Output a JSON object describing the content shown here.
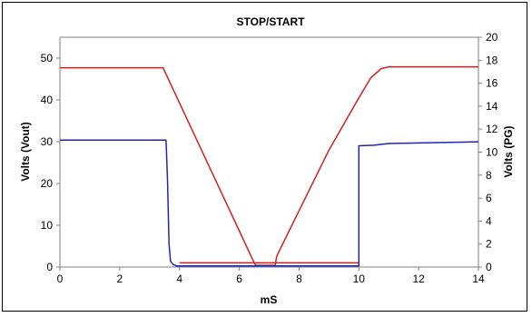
{
  "chart_data": {
    "type": "line",
    "title": "STOP/START",
    "xlabel": "mS",
    "ylabel_left": "Volts (Vout)",
    "ylabel_right": "Volts (PG)",
    "xlim": [
      0,
      14
    ],
    "ylim_left": [
      0,
      55
    ],
    "ylim_right": [
      0,
      20
    ],
    "x_ticks": [
      "0",
      "2",
      "4",
      "6",
      "8",
      "10",
      "12",
      "14"
    ],
    "y_left_ticks": [
      "0",
      "10",
      "20",
      "30",
      "40",
      "50"
    ],
    "y_right_ticks": [
      "0",
      "2",
      "4",
      "6",
      "8",
      "10",
      "12",
      "14",
      "16",
      "18",
      "20"
    ],
    "grid": false,
    "series": [
      {
        "axis": "left",
        "color": "#d21e1e",
        "x": [
          0,
          3.45,
          6.5,
          6.55,
          7.2,
          7.25,
          7.3,
          8.0,
          9.0,
          10.0,
          10.4,
          10.75,
          11.0,
          12.0,
          13.0,
          14.0
        ],
        "y": [
          47.7,
          47.7,
          1.0,
          0.4,
          0.4,
          2.5,
          3.3,
          13.5,
          28.0,
          40.5,
          45.3,
          47.5,
          47.9,
          47.9,
          47.9,
          47.9
        ]
      },
      {
        "axis": "left",
        "color": "#d21e1e",
        "x": [
          4.0,
          10.0
        ],
        "y": [
          1.0,
          1.0
        ]
      },
      {
        "axis": "right",
        "color": "#1f26b8",
        "x": [
          0,
          3.55,
          3.6,
          3.65,
          3.7,
          3.8,
          3.9,
          4.0,
          10.0,
          10.0,
          10.5,
          11.0,
          12.0,
          13.0,
          14.0
        ],
        "y": [
          11.05,
          11.05,
          7.5,
          2.0,
          0.5,
          0.2,
          0.1,
          0.1,
          0.1,
          10.55,
          10.6,
          10.75,
          10.8,
          10.85,
          10.9
        ]
      }
    ]
  }
}
